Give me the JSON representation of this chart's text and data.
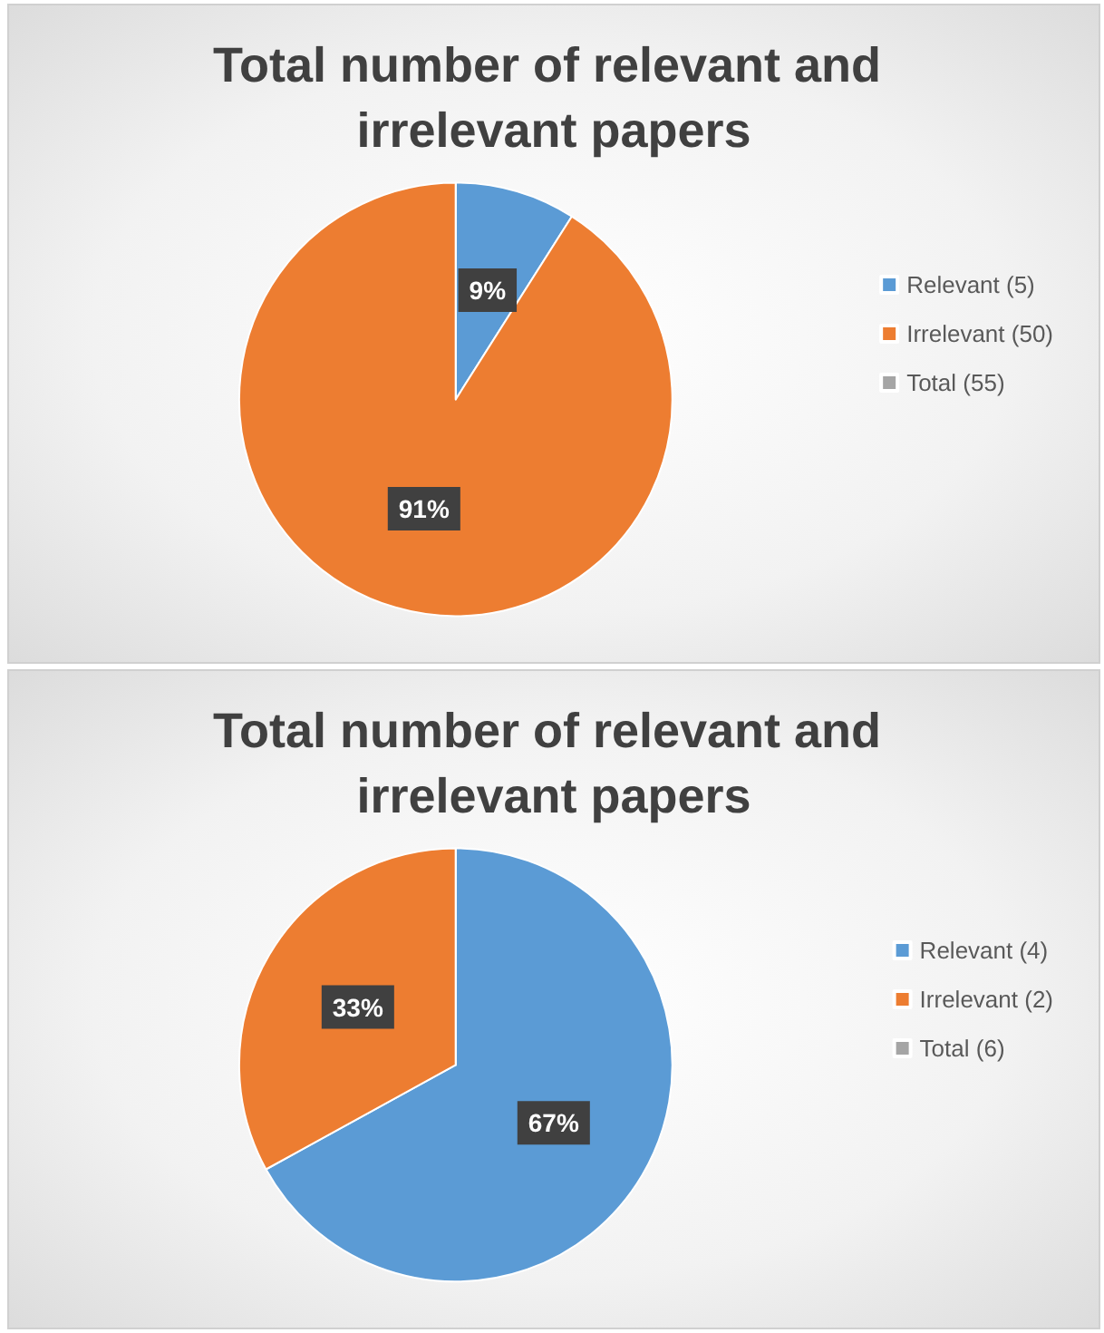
{
  "chart_data": [
    {
      "type": "pie",
      "title": "Total number of relevant and irrelevant papers",
      "categories": [
        "Relevant (5)",
        "Irrelevant (50)",
        "Total (55)"
      ],
      "values": [
        9,
        91,
        0
      ],
      "colors": [
        "#5b9bd5",
        "#ed7d31",
        "#a5a5a5"
      ],
      "value_labels": [
        "9%",
        "91%",
        null
      ],
      "legend": "right"
    },
    {
      "type": "pie",
      "title": "Total number of relevant and irrelevant papers",
      "categories": [
        "Relevant (4)",
        "Irrelevant (2)",
        "Total (6)"
      ],
      "values": [
        67,
        33,
        0
      ],
      "colors": [
        "#5b9bd5",
        "#ed7d31",
        "#a5a5a5"
      ],
      "value_labels": [
        "67%",
        "33%",
        null
      ],
      "legend": "right"
    }
  ]
}
